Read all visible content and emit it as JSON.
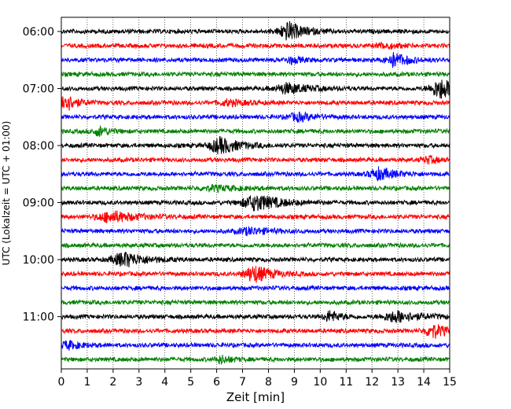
{
  "chart_data": {
    "type": "line",
    "subtype": "helicorder",
    "title": "",
    "xlabel": "Zeit  [min]",
    "ylabel": "UTC (Lokalzeit = UTC + 01:00)",
    "xlim": [
      0,
      15
    ],
    "xticks": [
      0,
      1,
      2,
      3,
      4,
      5,
      6,
      7,
      8,
      9,
      10,
      11,
      12,
      13,
      14,
      15
    ],
    "xtick_labels": [
      "0",
      "1",
      "2",
      "3",
      "4",
      "5",
      "6",
      "7",
      "8",
      "9",
      "10",
      "11",
      "12",
      "13",
      "14",
      "15"
    ],
    "ytick_labels": [
      "06:00",
      "07:00",
      "08:00",
      "09:00",
      "10:00",
      "11:00"
    ],
    "ytick_rows": [
      0,
      4,
      8,
      12,
      16,
      20
    ],
    "grid": "vertical dotted at each minute",
    "trace_colors": [
      "#000000",
      "#ff0000",
      "#0000ff",
      "#008000"
    ],
    "rows": [
      {
        "row": 0,
        "color": "#000000",
        "events": [
          {
            "t": 8.8,
            "amp": 1.0,
            "dur": 0.9
          }
        ]
      },
      {
        "row": 1,
        "color": "#ff0000",
        "events": [
          {
            "t": 12.5,
            "amp": 0.3,
            "dur": 0.8
          }
        ]
      },
      {
        "row": 2,
        "color": "#0000ff",
        "events": [
          {
            "t": 12.9,
            "amp": 0.75,
            "dur": 0.8
          },
          {
            "t": 8.9,
            "amp": 0.35,
            "dur": 0.6
          }
        ]
      },
      {
        "row": 3,
        "color": "#008000",
        "events": []
      },
      {
        "row": 4,
        "color": "#000000",
        "events": [
          {
            "t": 8.8,
            "amp": 0.55,
            "dur": 1.2
          },
          {
            "t": 14.7,
            "amp": 1.1,
            "dur": 1.0
          }
        ]
      },
      {
        "row": 5,
        "color": "#ff0000",
        "events": [
          {
            "t": 0.15,
            "amp": 1.1,
            "dur": 0.6
          },
          {
            "t": 6.5,
            "amp": 0.3,
            "dur": 1.0
          }
        ]
      },
      {
        "row": 6,
        "color": "#0000ff",
        "events": [
          {
            "t": 9.2,
            "amp": 0.4,
            "dur": 1.0
          }
        ]
      },
      {
        "row": 7,
        "color": "#008000",
        "events": [
          {
            "t": 1.5,
            "amp": 0.5,
            "dur": 0.6
          }
        ]
      },
      {
        "row": 8,
        "color": "#000000",
        "events": [
          {
            "t": 6.2,
            "amp": 0.85,
            "dur": 1.1
          }
        ]
      },
      {
        "row": 9,
        "color": "#ff0000",
        "events": [
          {
            "t": 14.2,
            "amp": 0.35,
            "dur": 0.6
          }
        ]
      },
      {
        "row": 10,
        "color": "#0000ff",
        "events": [
          {
            "t": 12.3,
            "amp": 0.65,
            "dur": 0.9
          }
        ]
      },
      {
        "row": 11,
        "color": "#008000",
        "events": [
          {
            "t": 6.0,
            "amp": 0.25,
            "dur": 1.5
          }
        ]
      },
      {
        "row": 12,
        "color": "#000000",
        "events": [
          {
            "t": 7.6,
            "amp": 0.85,
            "dur": 1.4
          }
        ]
      },
      {
        "row": 13,
        "color": "#ff0000",
        "events": [
          {
            "t": 2.0,
            "amp": 0.6,
            "dur": 1.4
          }
        ]
      },
      {
        "row": 14,
        "color": "#0000ff",
        "events": [
          {
            "t": 7.3,
            "amp": 0.35,
            "dur": 1.2
          }
        ]
      },
      {
        "row": 15,
        "color": "#008000",
        "events": []
      },
      {
        "row": 16,
        "color": "#000000",
        "events": [
          {
            "t": 2.5,
            "amp": 0.8,
            "dur": 1.2
          }
        ]
      },
      {
        "row": 17,
        "color": "#ff0000",
        "events": [
          {
            "t": 7.5,
            "amp": 0.9,
            "dur": 1.0
          }
        ]
      },
      {
        "row": 18,
        "color": "#0000ff",
        "events": []
      },
      {
        "row": 19,
        "color": "#008000",
        "events": []
      },
      {
        "row": 20,
        "color": "#000000",
        "events": [
          {
            "t": 10.4,
            "amp": 0.6,
            "dur": 0.6
          },
          {
            "t": 13.0,
            "amp": 0.6,
            "dur": 1.3
          }
        ]
      },
      {
        "row": 21,
        "color": "#ff0000",
        "events": [
          {
            "t": 14.4,
            "amp": 0.75,
            "dur": 0.8
          }
        ]
      },
      {
        "row": 22,
        "color": "#0000ff",
        "events": [
          {
            "t": 0.3,
            "amp": 0.4,
            "dur": 0.8
          }
        ]
      },
      {
        "row": 23,
        "color": "#008000",
        "events": [
          {
            "t": 6.2,
            "amp": 0.4,
            "dur": 0.6
          }
        ]
      }
    ]
  }
}
